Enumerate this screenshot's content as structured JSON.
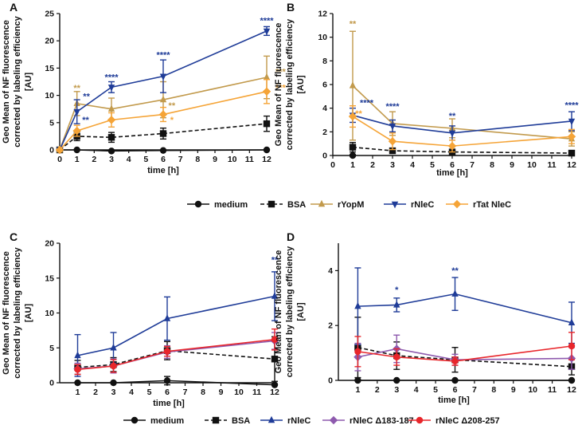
{
  "colors": {
    "medium": "#111111",
    "bsa": "#111111",
    "rYopM": "#C29A4C",
    "rNleC": "#1F3C98",
    "rTatNleC": "#F5A437",
    "rNleC_d183": "#8E5AAE",
    "rNleC_d208": "#E8262B"
  },
  "legend_top": [
    {
      "label": "medium",
      "series": "medium"
    },
    {
      "label": "BSA",
      "series": "bsa"
    },
    {
      "label": "rYopM",
      "series": "rYopM"
    },
    {
      "label": "rNleC",
      "series": "rNleC"
    },
    {
      "label": "rTat NleC",
      "series": "rTatNleC"
    }
  ],
  "legend_bottom": [
    {
      "label": "medium",
      "series": "medium"
    },
    {
      "label": "BSA",
      "series": "bsa"
    },
    {
      "label": "rNleC",
      "series": "rNleC"
    },
    {
      "label": "rNleC Δ183-187",
      "series": "rNleC_d183"
    },
    {
      "label": "rNleC Δ208-257",
      "series": "rNleC_d208"
    }
  ],
  "chart_data": [
    {
      "panel": "A",
      "type": "line",
      "xlabel": "time [h]",
      "ylabel": [
        "Geo Mean of NF fluorescence",
        "corrected by labeling efficiency",
        "[AU]"
      ],
      "xlim": [
        0,
        12
      ],
      "ylim": [
        0,
        25
      ],
      "xticks": [
        0,
        1,
        2,
        3,
        4,
        5,
        6,
        7,
        8,
        9,
        10,
        11,
        12
      ],
      "yticks": [
        0,
        5,
        10,
        15,
        20,
        25
      ],
      "series": [
        {
          "name": "medium",
          "key": "medium",
          "marker": "circle",
          "dash": false,
          "x": [
            0,
            1,
            3,
            6,
            12
          ],
          "y": [
            0,
            0,
            -0.2,
            -0.1,
            0
          ],
          "err": [
            0,
            0,
            0,
            0,
            0
          ]
        },
        {
          "name": "BSA",
          "key": "bsa",
          "marker": "square",
          "dash": true,
          "x": [
            0,
            1,
            3,
            6,
            12
          ],
          "y": [
            0,
            2.5,
            2.3,
            3.0,
            4.8
          ],
          "err": [
            0,
            0.8,
            0.9,
            1.0,
            1.4
          ]
        },
        {
          "name": "rYopM",
          "key": "rYopM",
          "marker": "tri-up",
          "dash": false,
          "x": [
            0,
            1,
            3,
            6,
            12
          ],
          "y": [
            0,
            8.5,
            7.5,
            9.2,
            13.3
          ],
          "err": [
            0,
            2.2,
            2.0,
            3.3,
            3.9
          ]
        },
        {
          "name": "rNleC",
          "key": "rNleC",
          "marker": "tri-down",
          "dash": false,
          "x": [
            0,
            1,
            3,
            6,
            12
          ],
          "y": [
            0,
            7.0,
            11.5,
            13.5,
            21.8
          ],
          "err": [
            0,
            2.2,
            1.0,
            3.0,
            0.8
          ]
        },
        {
          "name": "rTat NleC",
          "key": "rTatNleC",
          "marker": "diamond",
          "dash": false,
          "x": [
            0,
            1,
            3,
            6,
            12
          ],
          "y": [
            0,
            3.5,
            5.5,
            6.5,
            10.7
          ],
          "err": [
            0,
            1.0,
            1.3,
            1.3,
            2.2
          ]
        }
      ],
      "annotations": [
        {
          "text": "**",
          "key": "rYopM",
          "x": 1,
          "y": 10.8
        },
        {
          "text": "**",
          "key": "rNleC",
          "x": 1.55,
          "y": 9.3
        },
        {
          "text": "**",
          "key": "rNleC",
          "x": 1.5,
          "y": 5.0
        },
        {
          "text": "****",
          "key": "rNleC",
          "x": 3,
          "y": 12.8
        },
        {
          "text": "*",
          "key": "rYopM",
          "x": 3,
          "y": 6.5
        },
        {
          "text": "****",
          "key": "rNleC",
          "x": 6,
          "y": 16.9
        },
        {
          "text": "**",
          "key": "rYopM",
          "x": 6.5,
          "y": 7.6
        },
        {
          "text": "*",
          "key": "rTatNleC",
          "x": 6.5,
          "y": 5.0
        },
        {
          "text": "****",
          "key": "rNleC",
          "x": 12,
          "y": 23.2
        },
        {
          "text": "***",
          "key": "rYopM",
          "x": 12.8,
          "y": 13.8
        },
        {
          "text": "***",
          "key": "rTatNleC",
          "x": 12.8,
          "y": 10.9
        }
      ]
    },
    {
      "panel": "B",
      "type": "line",
      "xlabel": "time [h]",
      "ylabel": [
        "Geo Mean of NF fluorescence",
        "corrected by labeling efficiency",
        "[AU]"
      ],
      "xlim": [
        0,
        12
      ],
      "ylim": [
        0,
        12
      ],
      "xticks": [
        0,
        1,
        2,
        3,
        4,
        5,
        6,
        7,
        8,
        9,
        10,
        11,
        12
      ],
      "yticks": [
        0,
        2,
        4,
        6,
        8,
        10,
        12
      ],
      "series": [
        {
          "name": "medium",
          "key": "medium",
          "marker": "circle",
          "dash": false,
          "x": [
            1
          ],
          "y": [
            0
          ],
          "err": [
            0
          ]
        },
        {
          "name": "BSA",
          "key": "bsa",
          "marker": "square",
          "dash": true,
          "x": [
            1,
            3,
            6,
            12
          ],
          "y": [
            0.7,
            0.4,
            0.3,
            0.2
          ],
          "err": [
            0.4,
            0.2,
            0.2,
            0.2
          ]
        },
        {
          "name": "rYopM",
          "key": "rYopM",
          "marker": "tri-up",
          "dash": false,
          "x": [
            1,
            3,
            6,
            12
          ],
          "y": [
            5.9,
            2.7,
            2.3,
            1.4
          ],
          "err": [
            4.6,
            1.0,
            0.8,
            0.6
          ]
        },
        {
          "name": "rNleC",
          "key": "rNleC",
          "marker": "tri-down",
          "dash": false,
          "x": [
            1,
            3,
            6,
            12
          ],
          "y": [
            3.4,
            2.5,
            1.9,
            2.9
          ],
          "err": [
            0.6,
            0.5,
            0.6,
            0.8
          ]
        },
        {
          "name": "rTat NleC",
          "key": "rTatNleC",
          "marker": "diamond",
          "dash": false,
          "x": [
            1,
            3,
            6,
            12
          ],
          "y": [
            3.3,
            1.2,
            0.8,
            1.6
          ],
          "err": [
            0.9,
            0.7,
            0.5,
            0.6
          ]
        }
      ],
      "annotations": [
        {
          "text": "**",
          "key": "rYopM",
          "x": 1,
          "y": 10.9
        },
        {
          "text": "****",
          "key": "rNleC",
          "x": 1.7,
          "y": 4.2
        },
        {
          "text": "**",
          "key": "rTatNleC",
          "x": 1.3,
          "y": 3.3
        },
        {
          "text": "****",
          "key": "rNleC",
          "x": 3,
          "y": 3.9
        },
        {
          "text": "**",
          "key": "rNleC",
          "x": 6,
          "y": 3.1
        },
        {
          "text": "****",
          "key": "rNleC",
          "x": 12,
          "y": 4.0
        }
      ]
    },
    {
      "panel": "C",
      "type": "line",
      "xlabel": "time [h]",
      "ylabel": [
        "Geo Mean of NF fluorescence",
        "corrected by labeling efficiency",
        "[AU]"
      ],
      "xlim": [
        0,
        12
      ],
      "ylim": [
        0,
        20
      ],
      "xticks": [
        1,
        2,
        3,
        4,
        5,
        6,
        7,
        8,
        9,
        10,
        11,
        12
      ],
      "yticks": [
        0,
        5,
        10,
        15,
        20
      ],
      "series": [
        {
          "name": "medium",
          "key": "medium",
          "marker": "circle",
          "dash": false,
          "x": [
            1,
            3,
            6,
            12
          ],
          "y": [
            0,
            0,
            0.3,
            -0.3
          ],
          "err": [
            0,
            0,
            0.6,
            0
          ]
        },
        {
          "name": "BSA",
          "key": "bsa",
          "marker": "square",
          "dash": true,
          "x": [
            1,
            3,
            6,
            12
          ],
          "y": [
            2.2,
            2.6,
            4.6,
            3.4
          ],
          "err": [
            1.0,
            1.0,
            1.3,
            3.2
          ]
        },
        {
          "name": "rNleC",
          "key": "rNleC",
          "marker": "tri-up",
          "dash": false,
          "x": [
            1,
            3,
            6,
            12
          ],
          "y": [
            3.9,
            5.0,
            9.2,
            12.4
          ],
          "err": [
            3.0,
            2.2,
            3.1,
            3.5
          ]
        },
        {
          "name": "rNleC Δ183-187",
          "key": "rNleC_d183",
          "marker": "diamond",
          "dash": false,
          "x": [
            1,
            3,
            6,
            12
          ],
          "y": [
            2.0,
            2.4,
            4.4,
            6.0
          ],
          "err": [
            0.8,
            1.0,
            0.9,
            1.2
          ]
        },
        {
          "name": "rNleC Δ208-257",
          "key": "rNleC_d208",
          "marker": "circle",
          "dash": false,
          "x": [
            1,
            3,
            6,
            12
          ],
          "y": [
            1.9,
            2.4,
            4.5,
            6.2
          ],
          "err": [
            0.7,
            0.9,
            0.7,
            1.5
          ]
        }
      ],
      "annotations": [
        {
          "text": "**",
          "key": "rNleC",
          "x": 12,
          "y": 17.2
        }
      ]
    },
    {
      "panel": "D",
      "type": "line",
      "xlabel": "time [h]",
      "ylabel": [
        "Geo Mean of NF fluorescence",
        "corrected by labeling efficiency",
        "[AU]"
      ],
      "xlim": [
        0,
        12
      ],
      "ylim": [
        0,
        5
      ],
      "xticks": [
        1,
        2,
        3,
        4,
        5,
        6,
        7,
        8,
        9,
        10,
        11,
        12
      ],
      "yticks": [
        0,
        2,
        4
      ],
      "series": [
        {
          "name": "medium",
          "key": "medium",
          "marker": "circle",
          "dash": false,
          "x": [
            1,
            3,
            6,
            12
          ],
          "y": [
            0,
            0,
            0,
            0
          ],
          "err": [
            0,
            0,
            0,
            0
          ]
        },
        {
          "name": "BSA",
          "key": "bsa",
          "marker": "square",
          "dash": true,
          "x": [
            1,
            3,
            6,
            12
          ],
          "y": [
            1.2,
            0.9,
            0.75,
            0.5
          ],
          "err": [
            1.1,
            0.5,
            0.45,
            0.3
          ]
        },
        {
          "name": "rNleC",
          "key": "rNleC",
          "marker": "tri-up",
          "dash": false,
          "x": [
            1,
            3,
            6,
            12
          ],
          "y": [
            2.7,
            2.75,
            3.15,
            2.1
          ],
          "err": [
            1.4,
            0.25,
            0.6,
            0.75
          ]
        },
        {
          "name": "rNleC Δ183-187",
          "key": "rNleC_d183",
          "marker": "diamond",
          "dash": false,
          "x": [
            1,
            3,
            6,
            12
          ],
          "y": [
            0.85,
            1.15,
            0.75,
            0.8
          ],
          "err": [
            0.5,
            0.5,
            0.2,
            0.4
          ]
        },
        {
          "name": "rNleC Δ208-257",
          "key": "rNleC_d208",
          "marker": "circle",
          "dash": false,
          "x": [
            1,
            3,
            6,
            12
          ],
          "y": [
            1.05,
            0.85,
            0.7,
            1.25
          ],
          "err": [
            0.55,
            0.3,
            0.15,
            0.5
          ]
        }
      ],
      "annotations": [
        {
          "text": "*",
          "key": "rNleC",
          "x": 3,
          "y": 3.2
        },
        {
          "text": "**",
          "key": "rNleC",
          "x": 6,
          "y": 3.9
        }
      ]
    }
  ]
}
